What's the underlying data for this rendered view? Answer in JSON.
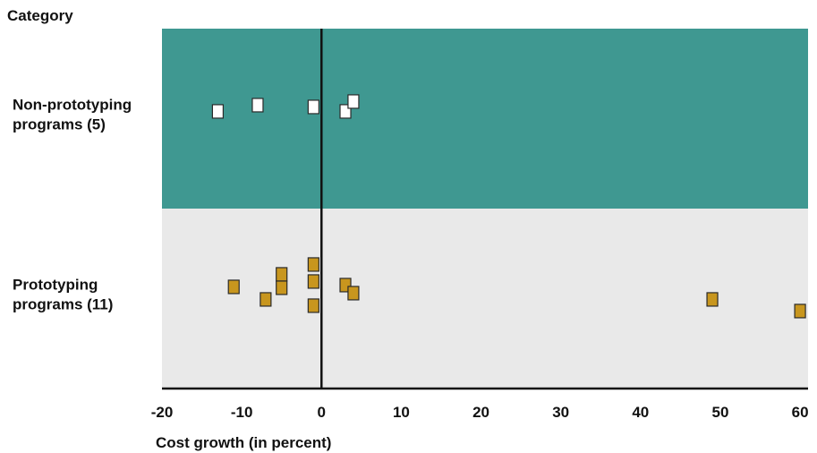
{
  "chart_data": {
    "type": "scatter",
    "title": "",
    "ylabel": "Category",
    "xlabel": "Cost growth (in percent)",
    "xlim": [
      -20,
      61
    ],
    "x_ticks": [
      -20,
      -10,
      0,
      10,
      20,
      30,
      40,
      50,
      60
    ],
    "x_tick_labels": [
      "-20",
      "-10",
      "0",
      "10",
      "20",
      "30",
      "40",
      "50",
      "60"
    ],
    "grid": false,
    "reference_line_x": 0,
    "categories": [
      {
        "name_lines": [
          "Non-prototyping",
          "programs (5)"
        ],
        "background": "#3f9891",
        "marker_fill": "#ffffff",
        "values": [
          -13,
          -8,
          -1,
          3,
          4
        ]
      },
      {
        "name_lines": [
          "Prototyping",
          "programs (11)"
        ],
        "background": "#e9e9e9",
        "marker_fill": "#c8961e",
        "values": [
          -11,
          -7,
          -5,
          -5,
          -1,
          -1,
          -1,
          3,
          4,
          49,
          60
        ]
      }
    ],
    "colors": {
      "axis": "#111111",
      "marker_stroke": "#2a2a2a"
    }
  }
}
